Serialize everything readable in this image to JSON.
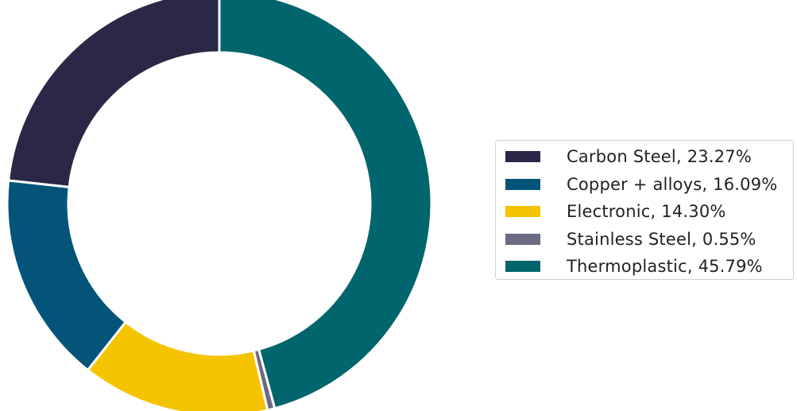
{
  "chart_data": {
    "type": "pie",
    "variant": "donut",
    "title": "",
    "start_angle_deg": 90,
    "direction": "counterclockwise",
    "legend_position": "right",
    "series": [
      {
        "name": "Carbon Steel",
        "value": 23.27,
        "label": "Carbon Steel, 23.27%",
        "color": "#2a2747"
      },
      {
        "name": "Copper + alloys",
        "value": 16.09,
        "label": "Copper + alloys, 16.09%",
        "color": "#045479"
      },
      {
        "name": "Electronic",
        "value": 14.3,
        "label": "Electronic, 14.30%",
        "color": "#f5c400"
      },
      {
        "name": "Stainless Steel",
        "value": 0.55,
        "label": "Stainless Steel, 0.55%",
        "color": "#6b6b83"
      },
      {
        "name": "Thermoplastic",
        "value": 45.79,
        "label": "Thermoplastic, 45.79%",
        "color": "#00656d"
      }
    ]
  }
}
